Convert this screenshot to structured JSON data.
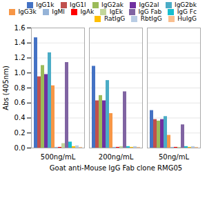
{
  "chart_data": {
    "type": "bar",
    "categories": [
      "500ng/mL",
      "200ng/mL",
      "50ng/mL"
    ],
    "series": [
      {
        "name": "IgG1k",
        "color": "#4472C4",
        "values": [
          1.47,
          1.09,
          0.5
        ]
      },
      {
        "name": "IgG1l",
        "color": "#C0504D",
        "values": [
          0.95,
          0.63,
          0.38
        ]
      },
      {
        "name": "IgG2ak",
        "color": "#9BBB59",
        "values": [
          1.1,
          0.7,
          0.36
        ]
      },
      {
        "name": "IgG2al",
        "color": "#7030A0",
        "values": [
          0.98,
          0.63,
          0.38
        ]
      },
      {
        "name": "IgG2bk",
        "color": "#4BACC6",
        "values": [
          1.27,
          0.9,
          0.42
        ]
      },
      {
        "name": "IgG3k",
        "color": "#F79646",
        "values": [
          0.83,
          0.46,
          0.17
        ]
      },
      {
        "name": "IgMl",
        "color": "#95B3D7",
        "values": [
          0.01,
          0.01,
          0.01
        ]
      },
      {
        "name": "IgAk",
        "color": "#FF0000",
        "values": [
          0.01,
          0.01,
          0.01
        ]
      },
      {
        "name": "IgEk",
        "color": "#C3D69B",
        "values": [
          0.06,
          0.02,
          0.01
        ]
      },
      {
        "name": "IgG Fab",
        "color": "#8064A2",
        "values": [
          1.14,
          0.75,
          0.31
        ]
      },
      {
        "name": "IgG Fc",
        "color": "#17BECF",
        "values": [
          0.08,
          0.02,
          0.02
        ]
      },
      {
        "name": "RatIgG",
        "color": "#FFBF00",
        "values": [
          0.02,
          0.01,
          0.01
        ]
      },
      {
        "name": "RbtIgG",
        "color": "#B8CCE4",
        "values": [
          0.03,
          0.02,
          0.02
        ]
      },
      {
        "name": "HuIgG",
        "color": "#FABF8F",
        "values": [
          0.01,
          0.01,
          0.01
        ]
      }
    ],
    "xlabel": "Goat anti-Mouse IgG Fab clone RMG05",
    "ylabel": "Abs (405nm)",
    "ylim": [
      0,
      1.6
    ],
    "yticks": [
      {
        "value": 0,
        "label": "0.0"
      },
      0.2,
      0.4,
      0.6,
      0.8,
      {
        "value": 1.0,
        "label": "1.0"
      },
      1.2,
      1.4,
      1.6
    ],
    "grid": true,
    "legend": "upper right"
  }
}
